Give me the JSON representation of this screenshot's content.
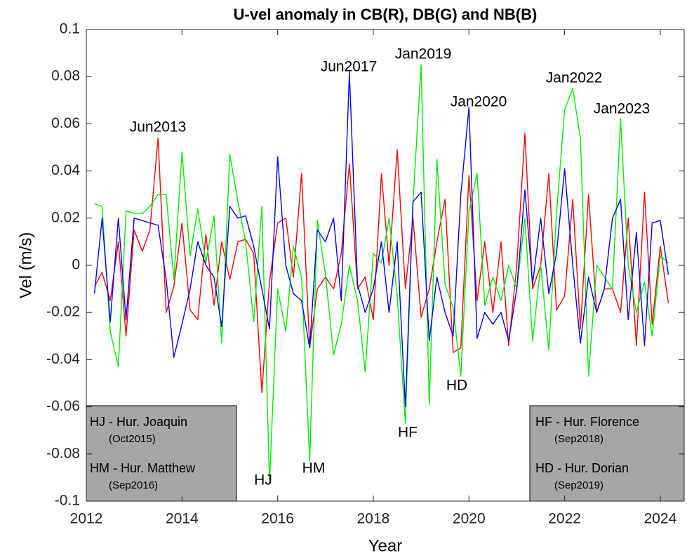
{
  "chart_data": {
    "type": "line",
    "title": "U-vel anomaly in CB(R), DB(G) and NB(B)",
    "xlabel": "Year",
    "ylabel": "Vel (m/s)",
    "x": [
      2012.17,
      2012.33,
      2012.5,
      2012.67,
      2012.83,
      2013,
      2013.17,
      2013.33,
      2013.5,
      2013.67,
      2013.83,
      2014,
      2014.17,
      2014.33,
      2014.5,
      2014.67,
      2014.83,
      2015,
      2015.17,
      2015.33,
      2015.5,
      2015.67,
      2015.83,
      2016,
      2016.17,
      2016.33,
      2016.5,
      2016.67,
      2016.83,
      2017,
      2017.17,
      2017.33,
      2017.5,
      2017.67,
      2017.83,
      2018,
      2018.17,
      2018.33,
      2018.5,
      2018.67,
      2018.83,
      2019,
      2019.17,
      2019.33,
      2019.5,
      2019.67,
      2019.83,
      2020,
      2020.17,
      2020.33,
      2020.5,
      2020.67,
      2020.83,
      2021,
      2021.17,
      2021.33,
      2021.5,
      2021.67,
      2021.83,
      2022,
      2022.17,
      2022.33,
      2022.5,
      2022.67,
      2022.83,
      2023,
      2023.17,
      2023.33,
      2023.5,
      2023.67,
      2023.83,
      2024,
      2024.17
    ],
    "series": [
      {
        "color": "#ff0000",
        "values": [
          -0.009,
          -0.003,
          -0.015,
          0.01,
          -0.03,
          0.015,
          0.006,
          0.015,
          0.054,
          -0.02,
          -0.009,
          0.018,
          -0.019,
          -0.023,
          0.013,
          -0.017,
          0.01,
          -0.006,
          0.01,
          0.011,
          0.005,
          -0.054,
          -0.007,
          0.018,
          0.02,
          -0.005,
          0.039,
          -0.035,
          -0.01,
          -0.005,
          -0.01,
          0.005,
          0.043,
          -0.01,
          -0.005,
          -0.023,
          0.039,
          0.0,
          0.049,
          -0.01,
          0.02,
          -0.022,
          -0.01,
          0.01,
          0.028,
          -0.037,
          -0.035,
          0.038,
          -0.015,
          0.01,
          -0.02,
          0.01,
          -0.034,
          0.0,
          0.056,
          -0.01,
          0.0,
          0.039,
          -0.019,
          -0.013,
          0.028,
          -0.027,
          0.03,
          -0.02,
          -0.01,
          -0.01,
          -0.02,
          0.02,
          -0.034,
          0.031,
          -0.025,
          0.008,
          -0.016
        ]
      },
      {
        "color": "#00ee00",
        "values": [
          0.026,
          0.025,
          -0.028,
          -0.043,
          0.023,
          0.022,
          0.022,
          0.025,
          0.03,
          0.03,
          -0.006,
          0.048,
          0.004,
          0.024,
          0.001,
          0.021,
          -0.033,
          0.047,
          0.027,
          0.01,
          -0.024,
          0.025,
          -0.092,
          -0.01,
          -0.028,
          0.008,
          -0.005,
          -0.083,
          0.019,
          -0.004,
          -0.038,
          -0.025,
          0.0,
          -0.015,
          -0.045,
          0.005,
          0.001,
          0.02,
          -0.013,
          -0.067,
          0.027,
          0.085,
          -0.059,
          0.045,
          -0.008,
          -0.018,
          -0.047,
          0.023,
          0.039,
          -0.017,
          -0.005,
          -0.015,
          0.0,
          -0.01,
          0.02,
          -0.032,
          0.0,
          -0.036,
          0.022,
          0.066,
          0.075,
          0.054,
          -0.047,
          0.0,
          -0.005,
          -0.01,
          0.062,
          0.0,
          -0.02,
          -0.007,
          -0.03,
          0.004,
          0.001
        ]
      },
      {
        "color": "#0000ff",
        "values": [
          -0.012,
          0.02,
          -0.024,
          0.02,
          -0.023,
          0.02,
          0.019,
          0.018,
          0.017,
          -0.006,
          -0.039,
          -0.025,
          -0.01,
          0.01,
          0.0,
          -0.005,
          -0.026,
          0.025,
          0.02,
          0.021,
          0.008,
          -0.01,
          -0.027,
          0.046,
          0.0,
          -0.012,
          -0.015,
          -0.035,
          0.015,
          0.01,
          0.02,
          -0.015,
          0.082,
          -0.008,
          -0.02,
          -0.01,
          0.01,
          -0.02,
          0.01,
          -0.06,
          0.027,
          0.031,
          -0.032,
          -0.005,
          -0.02,
          -0.03,
          0.03,
          0.067,
          -0.031,
          -0.02,
          -0.025,
          -0.02,
          -0.032,
          -0.01,
          0.032,
          -0.008,
          0.02,
          -0.012,
          0.005,
          0.041,
          0.0,
          -0.033,
          -0.005,
          -0.02,
          -0.01,
          0.02,
          0.028,
          -0.023,
          0.014,
          -0.034,
          0.018,
          0.019,
          -0.004
        ]
      }
    ],
    "xlim": [
      2012,
      2024.5
    ],
    "xticks": [
      2012,
      2014,
      2016,
      2018,
      2020,
      2022,
      2024
    ],
    "ylim": [
      -0.1,
      0.1
    ],
    "yticks": [
      -0.1,
      -0.08,
      -0.06,
      -0.04,
      -0.02,
      0,
      0.02,
      0.04,
      0.06,
      0.08,
      0.1
    ],
    "grid": false,
    "annotations": [
      "Jun2013",
      "Jun2017",
      "Jan2019",
      "Jan2020",
      "Jan2022",
      "Jan2023",
      "HJ",
      "HM",
      "HF",
      "HD"
    ],
    "key_boxes": [
      [
        "HJ - Hur. Joaquin",
        "(Oct2015)",
        "HM - Hur. Matthew",
        "(Sep2016)"
      ],
      [
        "HF - Hur. Florence",
        "(Sep2018)",
        "HD - Hur. Dorian",
        "(Sep2019)"
      ]
    ]
  }
}
